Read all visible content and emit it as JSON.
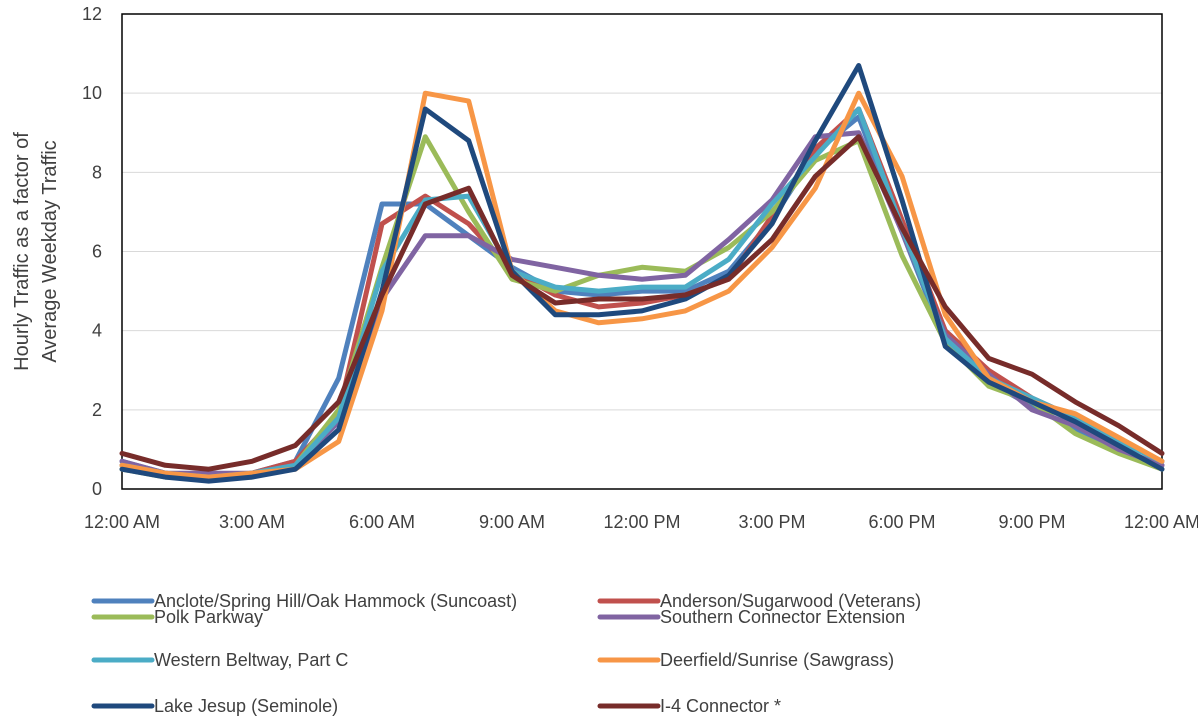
{
  "chart_data": {
    "type": "line",
    "title": "",
    "xlabel": "",
    "ylabel_lines": [
      "Hourly Traffic as a factor of",
      "Average Weekday Traffic"
    ],
    "x_tick_labels": [
      "12:00 AM",
      "3:00 AM",
      "6:00 AM",
      "9:00 AM",
      "12:00 PM",
      "3:00 PM",
      "6:00 PM",
      "9:00 PM",
      "12:00 AM"
    ],
    "x_hours": [
      0,
      1,
      2,
      3,
      4,
      5,
      6,
      7,
      8,
      9,
      10,
      11,
      12,
      13,
      14,
      15,
      16,
      17,
      18,
      19,
      20,
      21,
      22,
      23,
      24
    ],
    "xlim": [
      0,
      24
    ],
    "ylim": [
      0,
      12
    ],
    "y_ticks": [
      0,
      2,
      4,
      6,
      8,
      10,
      12
    ],
    "grid": "horizontal",
    "legend_position": "bottom",
    "series": [
      {
        "name": "Anclote/Spring Hill/Oak Hammock (Suncoast)",
        "color": "#4F81BD",
        "values": [
          0.7,
          0.4,
          0.3,
          0.4,
          0.7,
          2.8,
          7.2,
          7.2,
          6.4,
          5.6,
          5.0,
          4.9,
          5.0,
          5.0,
          5.5,
          6.8,
          8.5,
          9.4,
          6.5,
          3.7,
          2.7,
          2.1,
          1.5,
          1.0,
          0.6
        ]
      },
      {
        "name": "Anderson/Sugarwood (Veterans)",
        "color": "#C0504D",
        "values": [
          0.6,
          0.4,
          0.3,
          0.4,
          0.7,
          1.9,
          6.7,
          7.4,
          6.7,
          5.5,
          4.9,
          4.6,
          4.7,
          4.9,
          5.3,
          6.9,
          8.6,
          9.6,
          6.8,
          4.0,
          3.0,
          2.3,
          1.8,
          1.2,
          0.7
        ]
      },
      {
        "name": "Polk Parkway",
        "color": "#9BBB59",
        "values": [
          0.5,
          0.3,
          0.3,
          0.3,
          0.6,
          2.0,
          5.6,
          8.9,
          7.0,
          5.3,
          5.0,
          5.4,
          5.6,
          5.5,
          6.1,
          7.0,
          8.3,
          8.8,
          5.9,
          3.7,
          2.6,
          2.2,
          1.4,
          0.9,
          0.5
        ]
      },
      {
        "name": "Southern Connector Extension",
        "color": "#8064A2",
        "values": [
          0.7,
          0.4,
          0.4,
          0.4,
          0.6,
          1.7,
          4.8,
          6.4,
          6.4,
          5.8,
          5.6,
          5.4,
          5.3,
          5.4,
          6.3,
          7.3,
          8.9,
          9.0,
          6.5,
          3.9,
          2.9,
          2.0,
          1.6,
          1.0,
          0.6
        ]
      },
      {
        "name": "Western Beltway, Part C",
        "color": "#4BACC6",
        "values": [
          0.6,
          0.4,
          0.3,
          0.4,
          0.6,
          1.8,
          5.5,
          7.3,
          7.4,
          5.5,
          5.1,
          5.0,
          5.1,
          5.1,
          5.8,
          7.2,
          8.4,
          9.6,
          6.6,
          3.8,
          2.8,
          2.3,
          1.8,
          1.2,
          0.7
        ]
      },
      {
        "name": "Deerfield/Sunrise (Sawgrass)",
        "color": "#F79646",
        "values": [
          0.6,
          0.4,
          0.3,
          0.4,
          0.5,
          1.2,
          4.5,
          10.0,
          9.8,
          5.5,
          4.5,
          4.2,
          4.3,
          4.5,
          5.0,
          6.1,
          7.6,
          10.0,
          7.9,
          4.4,
          2.8,
          2.2,
          1.9,
          1.3,
          0.7
        ]
      },
      {
        "name": "Lake Jesup (Seminole)",
        "color": "#1F497D",
        "values": [
          0.5,
          0.3,
          0.2,
          0.3,
          0.5,
          1.5,
          5.0,
          9.6,
          8.8,
          5.5,
          4.4,
          4.4,
          4.5,
          4.8,
          5.4,
          6.7,
          8.8,
          10.7,
          7.3,
          3.6,
          2.7,
          2.2,
          1.7,
          1.1,
          0.5
        ]
      },
      {
        "name": "I-4 Connector *",
        "color": "#772C2A",
        "values": [
          0.9,
          0.6,
          0.5,
          0.7,
          1.1,
          2.2,
          4.9,
          7.2,
          7.6,
          5.4,
          4.7,
          4.8,
          4.8,
          4.9,
          5.3,
          6.3,
          7.9,
          8.9,
          6.6,
          4.6,
          3.3,
          2.9,
          2.2,
          1.6,
          0.9
        ]
      }
    ]
  }
}
